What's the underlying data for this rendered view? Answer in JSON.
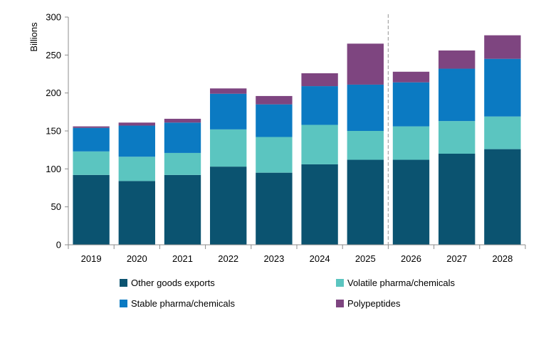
{
  "chart_data": {
    "type": "bar",
    "stacked": true,
    "title": "",
    "xlabel": "",
    "ylabel": "Billions",
    "ylim": [
      0,
      300
    ],
    "yticks": [
      0,
      50,
      100,
      150,
      200,
      250,
      300
    ],
    "grid": false,
    "legend_position": "bottom",
    "forecast_divider_after": "2025",
    "categories": [
      "2019",
      "2020",
      "2021",
      "2022",
      "2023",
      "2024",
      "2025",
      "2026",
      "2027",
      "2028"
    ],
    "series": [
      {
        "name": "Other goods exports",
        "color": "#0b5370",
        "values": [
          92,
          84,
          92,
          103,
          95,
          106,
          112,
          112,
          120,
          126
        ]
      },
      {
        "name": "Volatile pharma/chemicals",
        "color": "#5bc5c0",
        "values": [
          31,
          32,
          29,
          49,
          47,
          52,
          38,
          44,
          43,
          43
        ]
      },
      {
        "name": "Stable pharma/chemicals",
        "color": "#0b7ac2",
        "values": [
          31,
          41,
          40,
          47,
          43,
          51,
          61,
          58,
          69,
          76
        ]
      },
      {
        "name": "Polypeptides",
        "color": "#7e4580",
        "values": [
          2,
          4,
          5,
          7,
          11,
          17,
          54,
          14,
          24,
          31
        ]
      }
    ]
  }
}
